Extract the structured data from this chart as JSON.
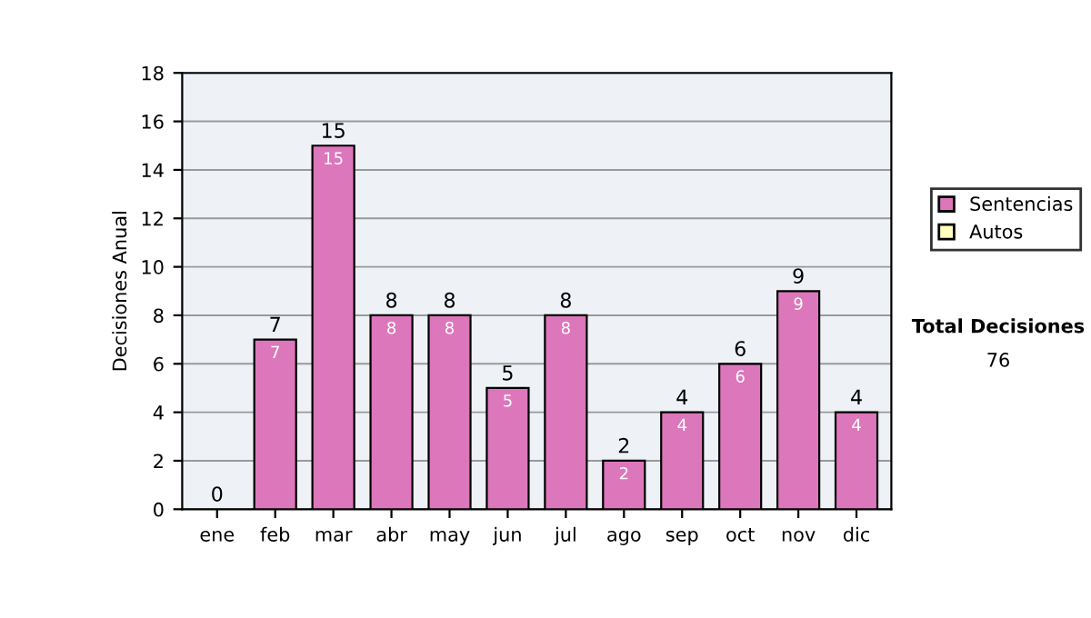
{
  "chart_data": {
    "type": "bar",
    "ylabel": "Decisiones Anual",
    "stacked": true,
    "categories": [
      "ene",
      "feb",
      "mar",
      "abr",
      "may",
      "jun",
      "jul",
      "ago",
      "sep",
      "oct",
      "nov",
      "dic"
    ],
    "series": [
      {
        "name": "Sentencias",
        "color": "#dd77bb",
        "values": [
          0,
          7,
          15,
          8,
          8,
          5,
          8,
          2,
          4,
          6,
          9,
          4
        ],
        "value_labels": [
          null,
          "7",
          "15",
          "8",
          "8",
          "5",
          "8",
          "2",
          "4",
          "6",
          "9",
          "4"
        ]
      },
      {
        "name": "Autos",
        "color": "#ffffc0",
        "values": [
          0,
          0,
          0,
          0,
          0,
          0,
          0,
          0,
          0,
          0,
          0,
          0
        ]
      }
    ],
    "totals": [
      "0",
      "7",
      "15",
      "8",
      "8",
      "5",
      "8",
      "2",
      "4",
      "6",
      "9",
      "4"
    ],
    "ylim": [
      0,
      18
    ],
    "yticks": [
      0,
      2,
      4,
      6,
      8,
      10,
      12,
      14,
      16,
      18
    ],
    "grid": "y",
    "legend": "right",
    "annotations": [
      "Total Decisiones",
      "76"
    ]
  }
}
